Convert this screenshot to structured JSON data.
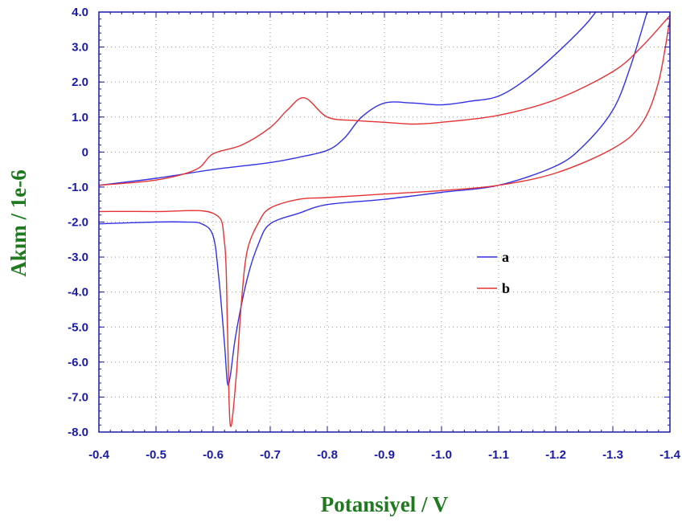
{
  "chart_data": {
    "type": "line",
    "title": "",
    "xlabel": "Potansiyel / V",
    "ylabel": "Akım / 1e-6",
    "xlim": [
      -0.4,
      -1.4
    ],
    "ylim": [
      -8.0,
      4.0
    ],
    "x_reversed": true,
    "grid": true,
    "legend_position": "right-middle",
    "x_ticks": [
      -0.4,
      -0.5,
      -0.6,
      -0.7,
      -0.8,
      -0.9,
      -1.0,
      -1.1,
      -1.2,
      -1.3,
      -1.4
    ],
    "x_tick_labels": [
      "-0.4",
      "-0.5",
      "-0.6",
      "-0.7",
      "-0.8",
      "-0.9",
      "-1.0",
      "-1.1",
      "-1.2",
      "-1.3",
      "-1.4"
    ],
    "y_ticks": [
      4.0,
      3.0,
      2.0,
      1.0,
      0,
      -1.0,
      -2.0,
      -3.0,
      -4.0,
      -5.0,
      -6.0,
      -7.0,
      -8.0
    ],
    "y_tick_labels": [
      "4.0",
      "3.0",
      "2.0",
      "1.0",
      "0",
      "-1.0",
      "-2.0",
      "-3.0",
      "-4.0",
      "-5.0",
      "-6.0",
      "-7.0",
      "-8.0"
    ],
    "series": [
      {
        "name": "a",
        "color": "#3232e6",
        "segments": [
          {
            "x": [
              -0.4,
              -0.5,
              -0.6,
              -0.7,
              -0.75,
              -0.8,
              -0.83,
              -0.86,
              -0.9,
              -0.95,
              -1.0,
              -1.05,
              -1.1,
              -1.15,
              -1.2,
              -1.25,
              -1.27
            ],
            "y": [
              -0.95,
              -0.75,
              -0.5,
              -0.3,
              -0.15,
              0.05,
              0.4,
              1.0,
              1.4,
              1.4,
              1.35,
              1.45,
              1.6,
              2.1,
              2.8,
              3.6,
              4.0
            ]
          },
          {
            "x": [
              -0.4,
              -0.5,
              -0.55,
              -0.58,
              -0.6,
              -0.61,
              -0.62,
              -0.625,
              -0.63,
              -0.64,
              -0.66,
              -0.68,
              -0.7,
              -0.75,
              -0.8,
              -0.9,
              -1.0,
              -1.1,
              -1.2,
              -1.25,
              -1.3,
              -1.33,
              -1.36
            ],
            "y": [
              -2.05,
              -2.0,
              -2.0,
              -2.05,
              -2.4,
              -3.6,
              -5.5,
              -6.6,
              -6.4,
              -5.2,
              -3.6,
              -2.6,
              -2.05,
              -1.75,
              -1.5,
              -1.35,
              -1.15,
              -0.95,
              -0.4,
              0.2,
              1.2,
              2.4,
              4.0
            ]
          }
        ]
      },
      {
        "name": "b",
        "color": "#e63232",
        "segments": [
          {
            "x": [
              -0.4,
              -0.5,
              -0.57,
              -0.6,
              -0.65,
              -0.7,
              -0.73,
              -0.76,
              -0.8,
              -0.85,
              -0.9,
              -0.95,
              -1.0,
              -1.1,
              -1.2,
              -1.3,
              -1.35,
              -1.4
            ],
            "y": [
              -0.95,
              -0.8,
              -0.5,
              -0.05,
              0.2,
              0.7,
              1.2,
              1.55,
              1.0,
              0.9,
              0.85,
              0.8,
              0.85,
              1.05,
              1.5,
              2.3,
              3.0,
              3.9
            ]
          },
          {
            "x": [
              -0.4,
              -0.5,
              -0.6,
              -0.62,
              -0.625,
              -0.63,
              -0.64,
              -0.65,
              -0.66,
              -0.68,
              -0.7,
              -0.75,
              -0.8,
              -0.9,
              -1.0,
              -1.1,
              -1.2,
              -1.3,
              -1.35,
              -1.38,
              -1.4
            ],
            "y": [
              -1.7,
              -1.7,
              -1.75,
              -2.6,
              -5.0,
              -7.8,
              -6.5,
              -4.2,
              -2.8,
              -2.0,
              -1.6,
              -1.35,
              -1.3,
              -1.2,
              -1.1,
              -0.95,
              -0.6,
              0.1,
              0.8,
              2.0,
              3.8
            ]
          }
        ]
      }
    ]
  }
}
